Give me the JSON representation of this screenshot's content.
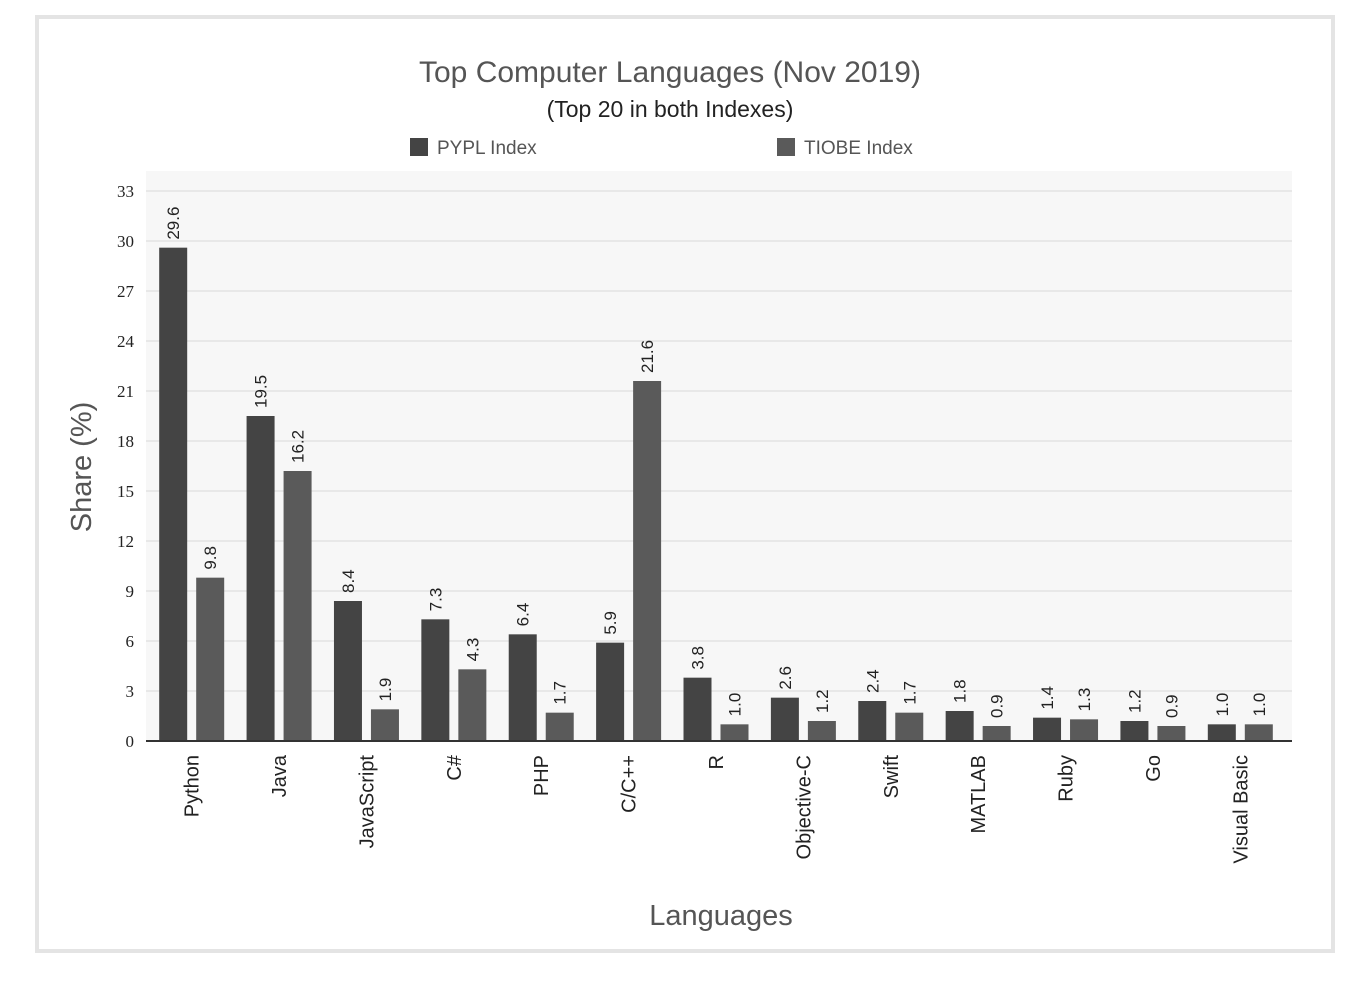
{
  "chart_data": {
    "type": "bar",
    "title": "Top Computer Languages (Nov 2019)",
    "subtitle": "(Top 20 in both Indexes)",
    "xlabel": "Languages",
    "ylabel": "Share (%)",
    "ylim": [
      0,
      33
    ],
    "yticks": [
      0,
      3,
      6,
      9,
      12,
      15,
      18,
      21,
      24,
      27,
      30,
      33
    ],
    "ytick_labels": [
      "0",
      "3",
      "6",
      "9",
      "12",
      "15",
      "18",
      "21",
      "24",
      "27",
      "30",
      "33"
    ],
    "grid": true,
    "legend_position": "top",
    "categories": [
      "Python",
      "Java",
      "JavaScript",
      "C#",
      "PHP",
      "C/C++",
      "R",
      "Objective-C",
      "Swift",
      "MATLAB",
      "Ruby",
      "Go",
      "Visual Basic"
    ],
    "series": [
      {
        "name": "PYPL Index",
        "color": "#444444",
        "values": [
          29.6,
          19.5,
          8.4,
          7.3,
          6.4,
          5.9,
          3.8,
          2.6,
          2.4,
          1.8,
          1.4,
          1.2,
          1.0
        ],
        "labels": [
          "29.6",
          "19.5",
          "8.4",
          "7.3",
          "6.4",
          "5.9",
          "3.8",
          "2.6",
          "2.4",
          "1.8",
          "1.4",
          "1.2",
          "1.0"
        ]
      },
      {
        "name": "TIOBE Index",
        "color": "#5a5a5a",
        "values": [
          9.8,
          16.2,
          1.9,
          4.3,
          1.7,
          21.6,
          1.0,
          1.2,
          1.7,
          0.9,
          1.3,
          0.9,
          1.0
        ],
        "labels": [
          "9.8",
          "16.2",
          "1.9",
          "4.3",
          "1.7",
          "21.6",
          "1.0",
          "1.2",
          "1.7",
          "0.9",
          "1.3",
          "0.9",
          "1.0"
        ]
      }
    ]
  }
}
